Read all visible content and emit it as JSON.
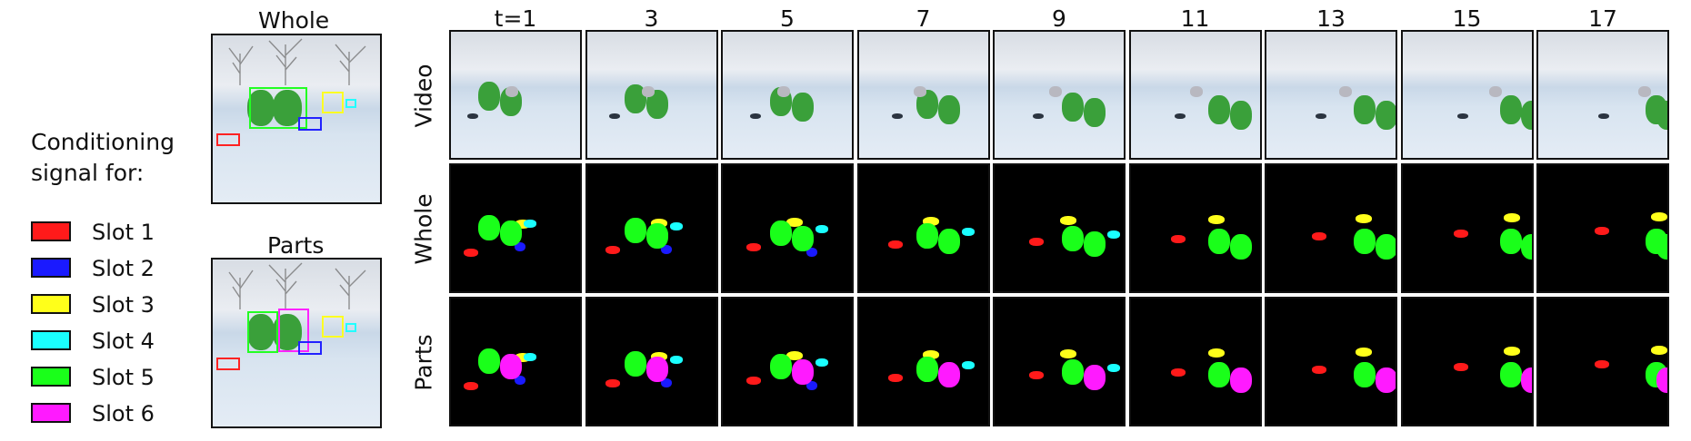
{
  "legend": {
    "title_line1": "Conditioning",
    "title_line2": "signal for:",
    "slots": [
      {
        "label": "Slot 1",
        "color": "#ff1a1a"
      },
      {
        "label": "Slot 2",
        "color": "#1a1aff"
      },
      {
        "label": "Slot 3",
        "color": "#ffff1a"
      },
      {
        "label": "Slot 4",
        "color": "#1affff"
      },
      {
        "label": "Slot 5",
        "color": "#1aff1a"
      },
      {
        "label": "Slot 6",
        "color": "#ff1aff"
      }
    ]
  },
  "conditioning_panels": {
    "whole_title": "Whole",
    "parts_title": "Parts"
  },
  "grid": {
    "column_titles": [
      "t=1",
      "3",
      "5",
      "7",
      "9",
      "11",
      "13",
      "15",
      "17"
    ],
    "row_titles": [
      "Video",
      "Whole",
      "Parts"
    ]
  }
}
